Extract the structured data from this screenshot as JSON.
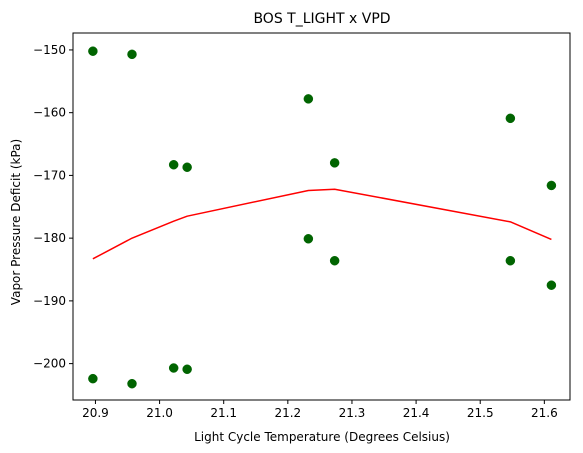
{
  "chart_data": {
    "type": "scatter",
    "title": "BOS T_LIGHT x VPD",
    "xlabel": "Light Cycle Temperature (Degrees Celsius)",
    "ylabel": "Vapor Pressure Deficit (kPa)",
    "xlim": [
      20.865,
      21.64
    ],
    "ylim": [
      -205.8,
      -147.3
    ],
    "xticks": [
      20.9,
      21.0,
      21.1,
      21.2,
      21.3,
      21.4,
      21.5,
      21.6
    ],
    "xtick_labels": [
      "20.9",
      "21.0",
      "21.1",
      "21.2",
      "21.3",
      "21.4",
      "21.5",
      "21.6"
    ],
    "yticks": [
      -150,
      -160,
      -170,
      -180,
      -190,
      -200
    ],
    "ytick_labels": [
      "−150",
      "−160",
      "−170",
      "−180",
      "−190",
      "−200"
    ],
    "grid": false,
    "series": [
      {
        "type": "scatter",
        "color": "#006400",
        "points": [
          [
            20.896,
            -150.2
          ],
          [
            20.896,
            -202.4
          ],
          [
            20.957,
            -150.7
          ],
          [
            20.957,
            -203.2
          ],
          [
            21.022,
            -168.3
          ],
          [
            21.022,
            -200.7
          ],
          [
            21.043,
            -168.7
          ],
          [
            21.043,
            -200.9
          ],
          [
            21.232,
            -157.8
          ],
          [
            21.232,
            -180.1
          ],
          [
            21.273,
            -168.0
          ],
          [
            21.273,
            -183.6
          ],
          [
            21.547,
            -160.9
          ],
          [
            21.547,
            -183.6
          ],
          [
            21.611,
            -171.6
          ],
          [
            21.611,
            -187.5
          ]
        ]
      },
      {
        "type": "line",
        "color": "#ff0000",
        "points": [
          [
            20.896,
            -183.3
          ],
          [
            20.957,
            -180.0
          ],
          [
            21.022,
            -177.3
          ],
          [
            21.043,
            -176.5
          ],
          [
            21.232,
            -172.4
          ],
          [
            21.273,
            -172.2
          ],
          [
            21.547,
            -177.4
          ],
          [
            21.611,
            -180.2
          ]
        ]
      }
    ]
  }
}
